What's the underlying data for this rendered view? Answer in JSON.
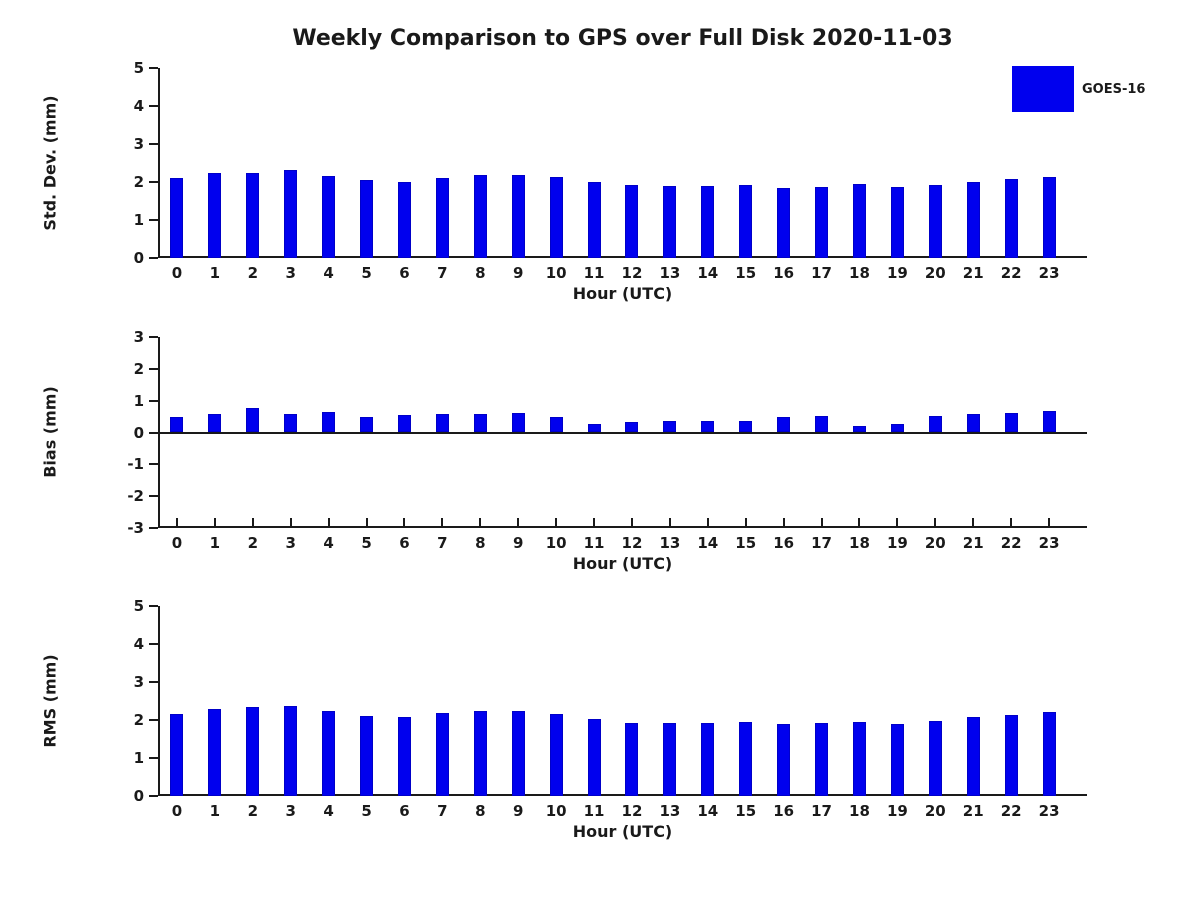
{
  "title": "Weekly Comparison to GPS over Full Disk 2020-11-03",
  "legend": {
    "position": "top-right",
    "items": [
      {
        "label": "GOES-16",
        "color": "#0000EE"
      }
    ]
  },
  "colors": {
    "bar_fill": "#0000EE",
    "bar_edge": "#0000C8",
    "axis": "#1a1a1a",
    "text": "#1a1a1a",
    "background": "#ffffff"
  },
  "chart_data": [
    {
      "type": "bar",
      "title": "",
      "ylabel": "Std. Dev. (mm)",
      "xlabel": "Hour (UTC)",
      "categories": [
        "0",
        "1",
        "2",
        "3",
        "4",
        "5",
        "6",
        "7",
        "8",
        "9",
        "10",
        "11",
        "12",
        "13",
        "14",
        "15",
        "16",
        "17",
        "18",
        "19",
        "20",
        "21",
        "22",
        "23"
      ],
      "series": [
        {
          "name": "GOES-16",
          "values": [
            2.1,
            2.23,
            2.23,
            2.31,
            2.15,
            2.05,
            2.0,
            2.1,
            2.18,
            2.18,
            2.12,
            2.0,
            1.91,
            1.89,
            1.9,
            1.92,
            1.85,
            1.87,
            1.95,
            1.87,
            1.92,
            1.99,
            2.07,
            2.12
          ]
        }
      ],
      "ylim": [
        0,
        5
      ],
      "yticks": [
        0,
        1,
        2,
        3,
        4,
        5
      ],
      "xlim": [
        -0.5,
        24
      ],
      "grid": false,
      "zero_line": false
    },
    {
      "type": "bar",
      "title": "",
      "ylabel": "Bias (mm)",
      "xlabel": "Hour (UTC)",
      "categories": [
        "0",
        "1",
        "2",
        "3",
        "4",
        "5",
        "6",
        "7",
        "8",
        "9",
        "10",
        "11",
        "12",
        "13",
        "14",
        "15",
        "16",
        "17",
        "18",
        "19",
        "20",
        "21",
        "22",
        "23"
      ],
      "series": [
        {
          "name": "GOES-16",
          "values": [
            0.48,
            0.57,
            0.78,
            0.59,
            0.63,
            0.5,
            0.55,
            0.59,
            0.57,
            0.6,
            0.48,
            0.27,
            0.32,
            0.36,
            0.35,
            0.35,
            0.48,
            0.52,
            0.21,
            0.28,
            0.52,
            0.58,
            0.61,
            0.67
          ]
        }
      ],
      "ylim": [
        -3,
        3
      ],
      "yticks": [
        -3,
        -2,
        -1,
        0,
        1,
        2,
        3
      ],
      "xlim": [
        -0.5,
        24
      ],
      "grid": false,
      "zero_line": true
    },
    {
      "type": "bar",
      "title": "",
      "ylabel": "RMS (mm)",
      "xlabel": "Hour (UTC)",
      "categories": [
        "0",
        "1",
        "2",
        "3",
        "4",
        "5",
        "6",
        "7",
        "8",
        "9",
        "10",
        "11",
        "12",
        "13",
        "14",
        "15",
        "16",
        "17",
        "18",
        "19",
        "20",
        "21",
        "22",
        "23"
      ],
      "series": [
        {
          "name": "GOES-16",
          "values": [
            2.15,
            2.29,
            2.34,
            2.37,
            2.24,
            2.11,
            2.08,
            2.18,
            2.24,
            2.24,
            2.17,
            2.03,
            1.93,
            1.92,
            1.91,
            1.95,
            1.9,
            1.91,
            1.95,
            1.89,
            1.98,
            2.07,
            2.12,
            2.22
          ]
        }
      ],
      "ylim": [
        0,
        5
      ],
      "yticks": [
        0,
        1,
        2,
        3,
        4,
        5
      ],
      "xlim": [
        -0.5,
        24
      ],
      "grid": false,
      "zero_line": false
    }
  ]
}
